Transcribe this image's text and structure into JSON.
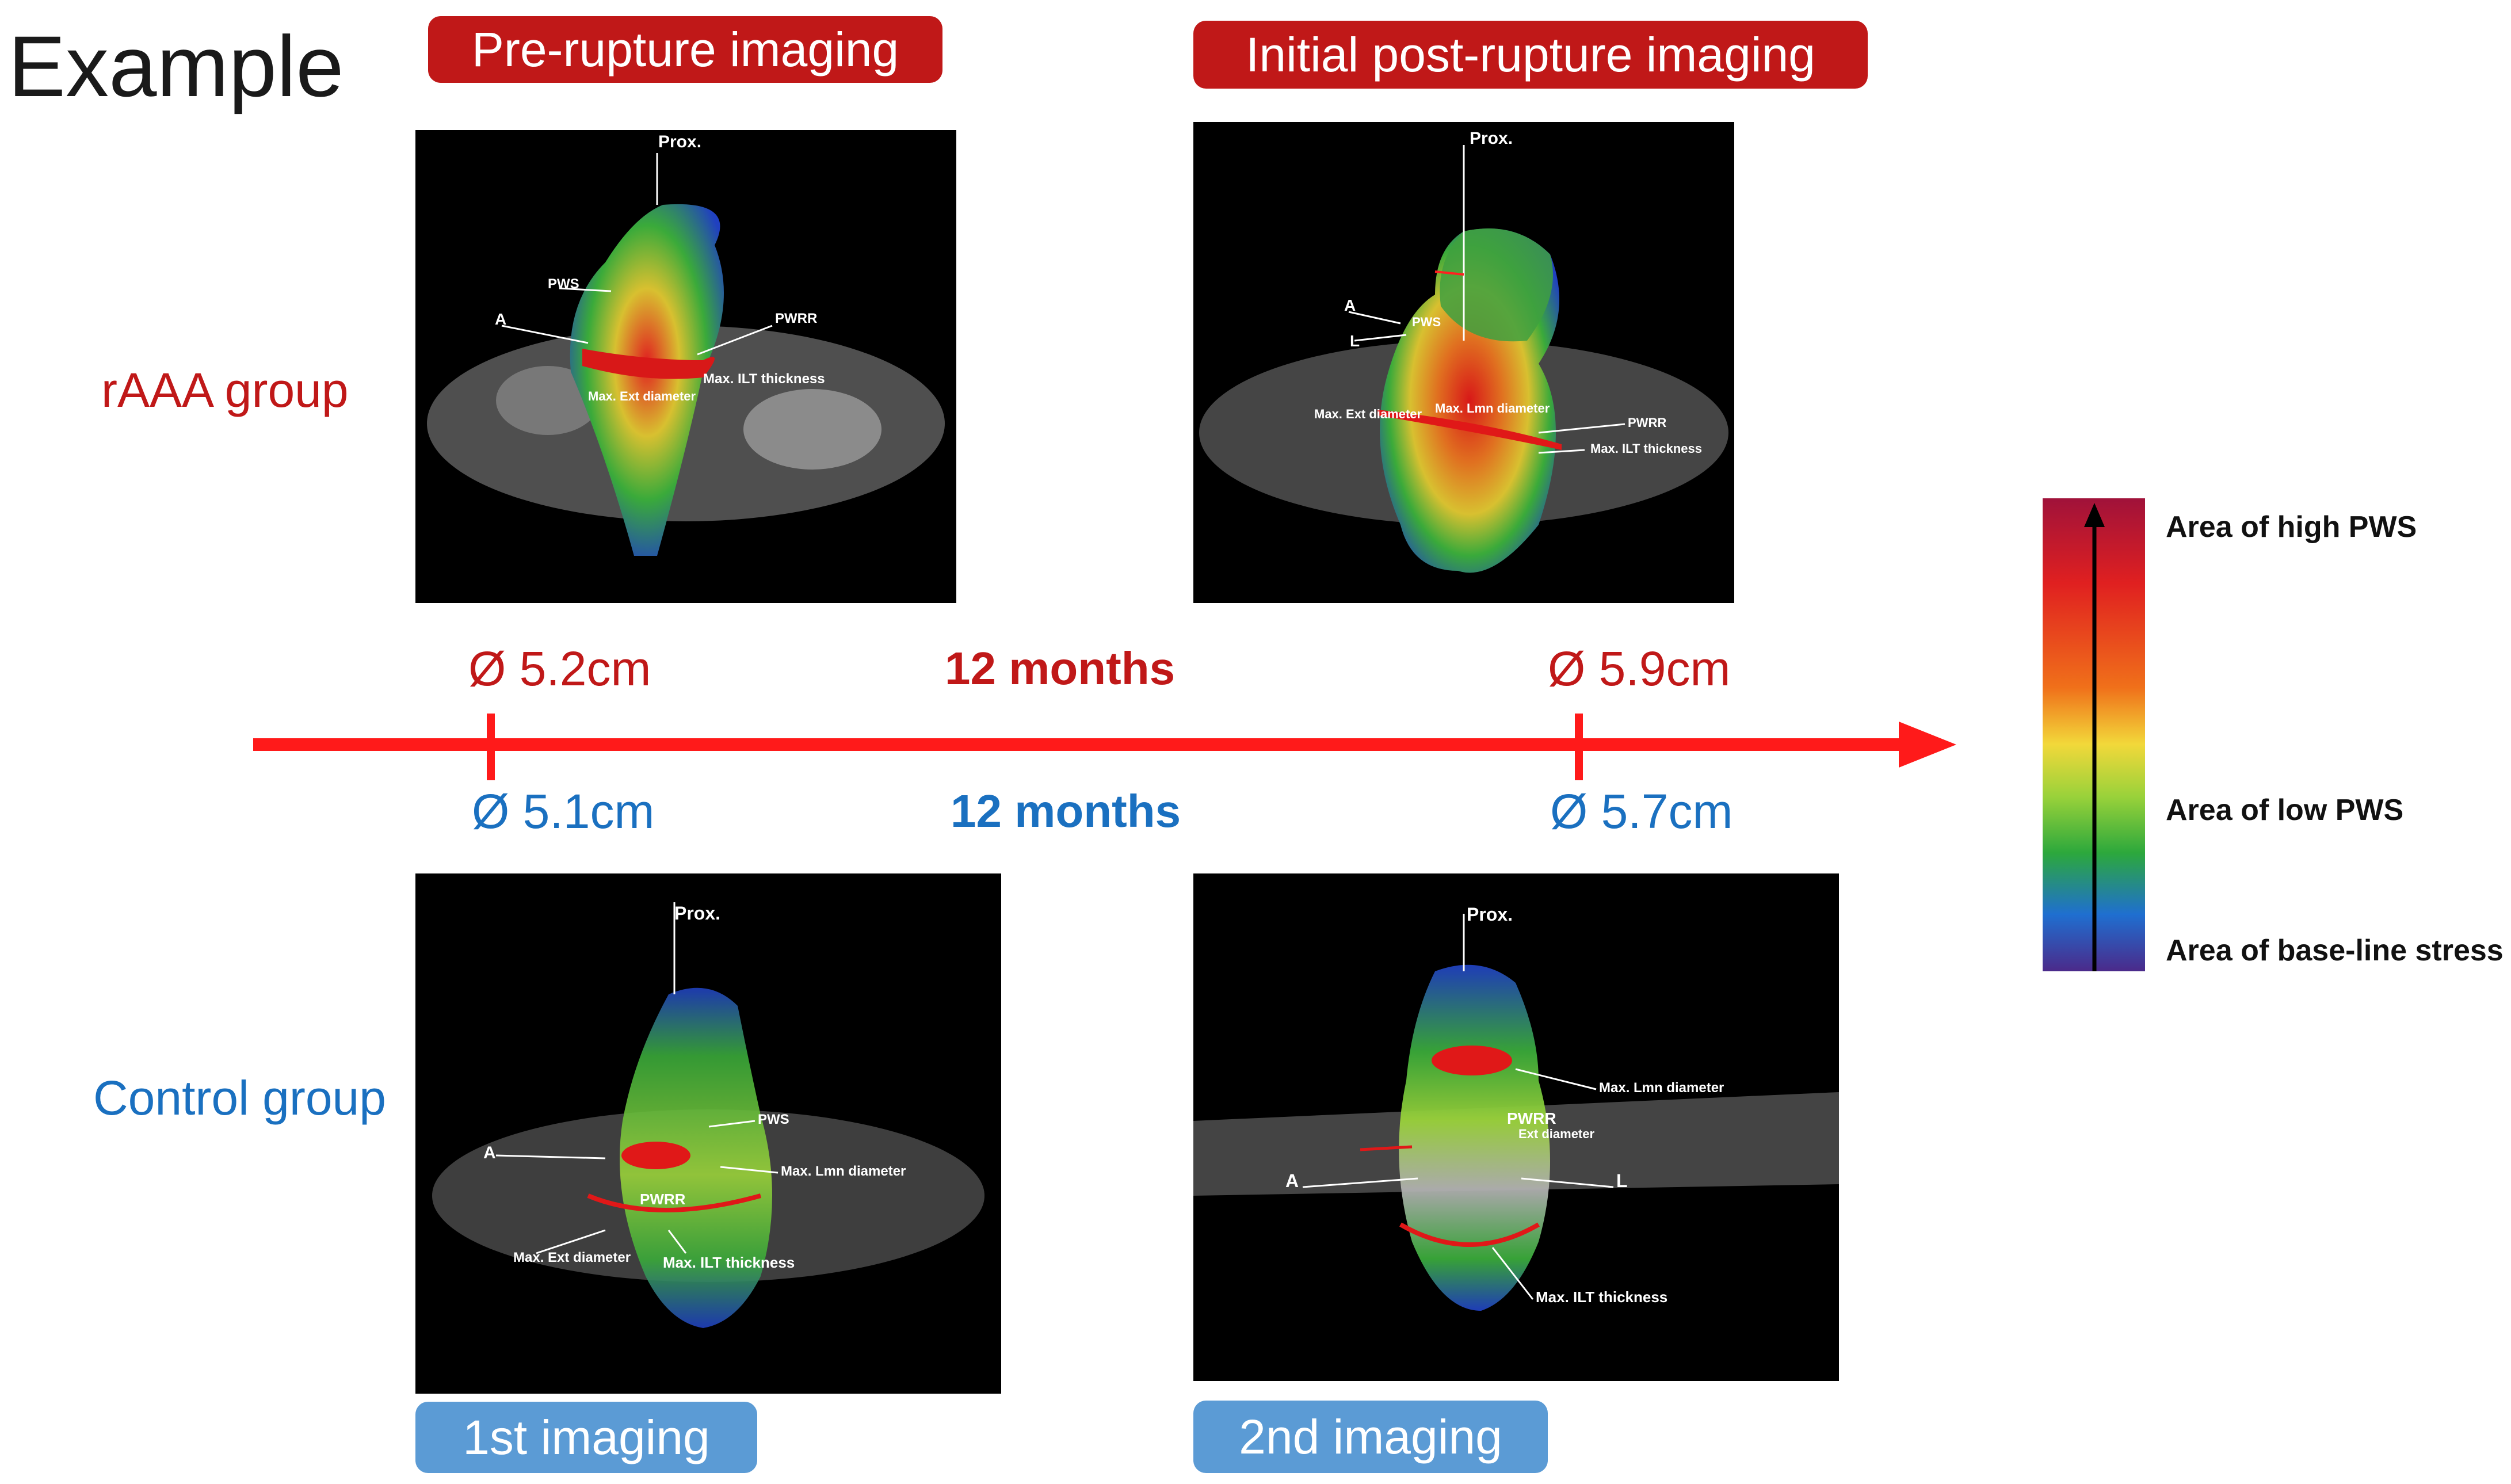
{
  "title": "Example",
  "badges": {
    "pre_rupture": "Pre-rupture imaging",
    "post_rupture": "Initial post-rupture imaging",
    "first_imaging": "1st imaging",
    "second_imaging": "2nd imaging"
  },
  "groups": {
    "raaa": "rAAA group",
    "control": "Control group"
  },
  "timeline": {
    "raaa_first_diameter": "Ø 5.2cm",
    "raaa_second_diameter": "Ø 5.9cm",
    "raaa_interval": "12 months",
    "control_first_diameter": "Ø 5.1cm",
    "control_second_diameter": "Ø 5.7cm",
    "control_interval": "12 months",
    "color": "#ff1a1a"
  },
  "scale": {
    "high": "Area of high PWS",
    "low": "Area of low PWS",
    "baseline": "Area of base-line stress"
  },
  "panels": {
    "p1": {
      "prox": "Prox.",
      "pws": "PWS",
      "a": "A",
      "pwrr": "PWRR",
      "ilt": "Max. ILT thickness",
      "ext": "Max. Ext diameter"
    },
    "p2": {
      "prox": "Prox.",
      "a": "A",
      "l": "L",
      "pws": "PWS",
      "ext": "Max. Ext diameter",
      "lmn": "Max. Lmn diameter",
      "pwrr": "PWRR",
      "ilt": "Max. ILT thickness"
    },
    "p3": {
      "prox": "Prox.",
      "pws": "PWS",
      "a": "A",
      "lmn": "Max. Lmn diameter",
      "pwrr": "PWRR",
      "ext": "Max. Ext diameter",
      "ilt": "Max. ILT thickness"
    },
    "p4": {
      "prox": "Prox.",
      "lmn": "Max. Lmn diameter",
      "pwrr": "PWRR",
      "ext": "Ext diameter",
      "a": "A",
      "l": "L",
      "ilt": "Max. ILT thickness"
    }
  },
  "colors": {
    "raaa": "#c01818",
    "control": "#1a70c0",
    "badge_red": "#c01818",
    "badge_blue": "#5b9bd5"
  }
}
